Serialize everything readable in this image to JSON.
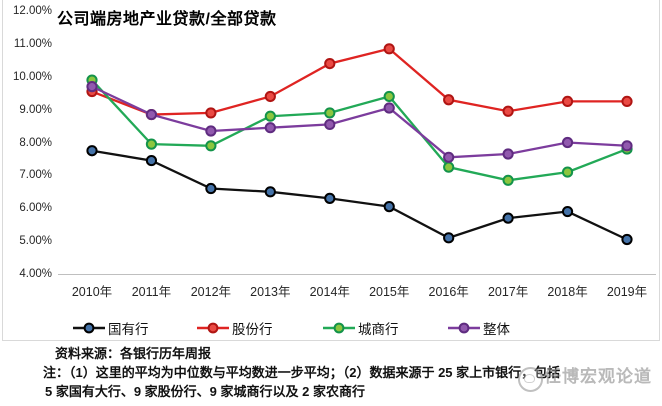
{
  "chart_data": {
    "type": "line",
    "title": "公司端房地产业贷款/全部贷款",
    "categories": [
      "2010年",
      "2011年",
      "2012年",
      "2013年",
      "2014年",
      "2015年",
      "2016年",
      "2017年",
      "2018年",
      "2019年"
    ],
    "series": [
      {
        "name": "国有行",
        "line_color": "#111111",
        "marker_fill": "#4472a8",
        "marker_ring": "#000000",
        "values": [
          7.75,
          7.45,
          6.6,
          6.5,
          6.3,
          6.05,
          5.1,
          5.7,
          5.9,
          5.05
        ]
      },
      {
        "name": "股份行",
        "line_color": "#df2422",
        "marker_fill": "#ea4a44",
        "marker_ring": "#b01513",
        "values": [
          9.55,
          8.85,
          8.9,
          9.4,
          10.4,
          10.85,
          9.3,
          8.95,
          9.25,
          9.25
        ]
      },
      {
        "name": "城商行",
        "line_color": "#22a957",
        "marker_fill": "#8cc63f",
        "marker_ring": "#13934a",
        "values": [
          9.9,
          7.95,
          7.9,
          8.8,
          8.9,
          9.4,
          7.25,
          6.85,
          7.1,
          7.8
        ]
      },
      {
        "name": "整体",
        "line_color": "#7c3c9d",
        "marker_fill": "#9159ae",
        "marker_ring": "#5f2c80",
        "values": [
          9.7,
          8.85,
          8.35,
          8.45,
          8.55,
          9.05,
          7.55,
          7.65,
          8.0,
          7.9
        ]
      }
    ],
    "y_tick_labels": [
      "12.00%",
      "11.00%",
      "10.00%",
      "9.00%",
      "8.00%",
      "7.00%",
      "6.00%",
      "5.00%",
      "4.00%"
    ],
    "ylim": [
      4,
      12
    ],
    "grid": false,
    "legend_position": "bottom",
    "axis_line_color": "#bfbfbf"
  },
  "footer": {
    "source": "资料来源：各银行历年周报",
    "note_line_1": "注：（1）这里的平均为中位数与平均数进一步平均；（2）数据来源于 25 家上市银行，包括",
    "note_line_2": "5 家国有大行、9 家股份行、9 家城商行以及 2 家农商行",
    "watermark_text": "任博宏观论道"
  }
}
